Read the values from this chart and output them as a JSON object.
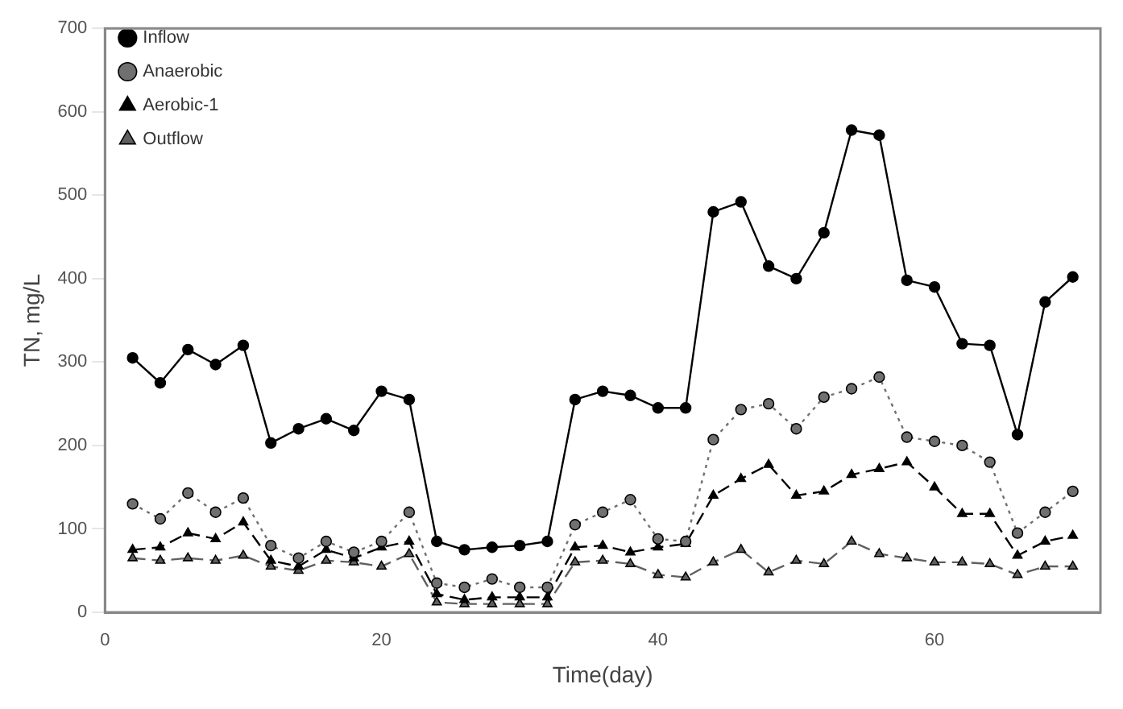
{
  "chart_data": {
    "type": "line",
    "xlabel": "Time(day)",
    "ylabel": "TN, mg/L",
    "x": [
      2,
      4,
      6,
      8,
      10,
      12,
      14,
      16,
      18,
      20,
      22,
      24,
      26,
      28,
      30,
      32,
      34,
      36,
      38,
      40,
      42,
      44,
      46,
      48,
      50,
      52,
      54,
      56,
      58,
      60,
      62,
      64,
      66,
      68,
      70
    ],
    "series": [
      {
        "name": "Inflow",
        "color": "#000000",
        "marker": "circle",
        "line_style": "solid",
        "values": [
          305,
          275,
          315,
          297,
          320,
          203,
          220,
          232,
          218,
          265,
          255,
          85,
          75,
          78,
          80,
          85,
          255,
          265,
          260,
          245,
          245,
          480,
          492,
          415,
          400,
          455,
          578,
          572,
          398,
          390,
          322,
          320,
          213,
          372,
          402
        ]
      },
      {
        "name": "Anaerobic",
        "color": "#707070",
        "marker": "circle",
        "line_style": "dotted",
        "values": [
          130,
          112,
          143,
          120,
          137,
          80,
          65,
          85,
          72,
          85,
          120,
          35,
          30,
          40,
          30,
          30,
          105,
          120,
          135,
          88,
          85,
          207,
          243,
          250,
          220,
          258,
          268,
          282,
          210,
          205,
          200,
          180,
          95,
          120,
          145
        ]
      },
      {
        "name": "Aerobic-1",
        "color": "#000000",
        "marker": "triangle",
        "line_style": "dashed",
        "values": [
          75,
          78,
          95,
          88,
          108,
          62,
          55,
          75,
          65,
          78,
          85,
          22,
          15,
          18,
          18,
          18,
          78,
          80,
          72,
          78,
          82,
          140,
          160,
          177,
          140,
          145,
          165,
          172,
          180,
          150,
          118,
          118,
          68,
          85,
          92
        ]
      },
      {
        "name": "Outflow",
        "color": "#606060",
        "marker": "triangle",
        "line_style": "dashed",
        "values": [
          65,
          62,
          65,
          62,
          68,
          55,
          50,
          62,
          60,
          55,
          70,
          12,
          10,
          10,
          10,
          10,
          60,
          62,
          58,
          45,
          42,
          60,
          75,
          48,
          62,
          58,
          85,
          70,
          65,
          60,
          60,
          58,
          45,
          55,
          55
        ]
      }
    ],
    "xlim": [
      0,
      72
    ],
    "xticks": [
      0,
      20,
      40,
      60
    ],
    "ylim": [
      0,
      700
    ],
    "yticks": [
      0,
      100,
      200,
      300,
      400,
      500,
      600,
      700
    ],
    "grid": false,
    "legend": "top left"
  }
}
